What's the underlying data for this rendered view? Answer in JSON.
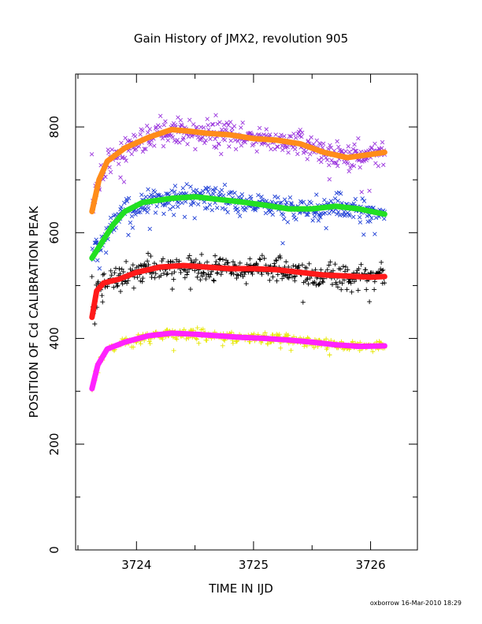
{
  "chart_data": {
    "type": "scatter",
    "title": "Gain History of JMX2, revolution 905",
    "xlabel": "TIME IN IJD",
    "ylabel": "POSITION OF Cd CALIBRATION PEAK",
    "footer": "oxborrow 16-Mar-2010 18:29",
    "xlim": [
      3723.48,
      3726.4
    ],
    "ylim": [
      0,
      900
    ],
    "x_ticks": [
      {
        "value": 3724,
        "label": "3724"
      },
      {
        "value": 3725,
        "label": "3725"
      },
      {
        "value": 3726,
        "label": "3726"
      }
    ],
    "y_ticks": [
      {
        "value": 0,
        "label": "0"
      },
      {
        "value": 200,
        "label": "200"
      },
      {
        "value": 400,
        "label": "400"
      },
      {
        "value": 600,
        "label": "600"
      },
      {
        "value": 800,
        "label": "800"
      }
    ],
    "x_range": [
      3723.62,
      3726.12
    ],
    "series": [
      {
        "scatter_color": "#9933dd",
        "scatter_marker": "x",
        "fit_color": "#ff8c1a",
        "scatter_spread": 28,
        "fit": [
          [
            3723.62,
            640
          ],
          [
            3723.68,
            700
          ],
          [
            3723.75,
            735
          ],
          [
            3723.9,
            760
          ],
          [
            3724.1,
            780
          ],
          [
            3724.3,
            795
          ],
          [
            3724.45,
            792
          ],
          [
            3724.6,
            788
          ],
          [
            3724.8,
            785
          ],
          [
            3725.0,
            778
          ],
          [
            3725.2,
            775
          ],
          [
            3725.4,
            768
          ],
          [
            3725.6,
            752
          ],
          [
            3725.8,
            742
          ],
          [
            3726.0,
            748
          ],
          [
            3726.12,
            752
          ]
        ]
      },
      {
        "scatter_color": "#1f3fd6",
        "scatter_marker": "x",
        "fit_color": "#22e022",
        "scatter_spread": 25,
        "fit": [
          [
            3723.62,
            552
          ],
          [
            3723.7,
            580
          ],
          [
            3723.8,
            615
          ],
          [
            3723.9,
            640
          ],
          [
            3724.05,
            657
          ],
          [
            3724.3,
            665
          ],
          [
            3724.5,
            668
          ],
          [
            3724.7,
            663
          ],
          [
            3724.9,
            658
          ],
          [
            3725.1,
            652
          ],
          [
            3725.3,
            645
          ],
          [
            3725.5,
            645
          ],
          [
            3725.7,
            650
          ],
          [
            3725.9,
            645
          ],
          [
            3726.12,
            635
          ]
        ]
      },
      {
        "scatter_color": "#000000",
        "scatter_marker": "+",
        "fit_color": "#ff1a1a",
        "scatter_spread": 25,
        "fit": [
          [
            3723.62,
            440
          ],
          [
            3723.66,
            490
          ],
          [
            3723.72,
            505
          ],
          [
            3723.85,
            512
          ],
          [
            3724.0,
            525
          ],
          [
            3724.2,
            535
          ],
          [
            3724.4,
            538
          ],
          [
            3724.6,
            535
          ],
          [
            3724.8,
            532
          ],
          [
            3725.0,
            532
          ],
          [
            3725.2,
            530
          ],
          [
            3725.4,
            525
          ],
          [
            3725.6,
            520
          ],
          [
            3725.8,
            518
          ],
          [
            3726.0,
            516
          ],
          [
            3726.12,
            517
          ]
        ]
      },
      {
        "scatter_color": "#e6e600",
        "scatter_marker": "+",
        "fit_color": "#ff22ff",
        "scatter_spread": 10,
        "fit": [
          [
            3723.62,
            305
          ],
          [
            3723.67,
            350
          ],
          [
            3723.75,
            380
          ],
          [
            3723.9,
            393
          ],
          [
            3724.1,
            405
          ],
          [
            3724.3,
            410
          ],
          [
            3724.5,
            408
          ],
          [
            3724.7,
            405
          ],
          [
            3724.9,
            402
          ],
          [
            3725.1,
            400
          ],
          [
            3725.3,
            397
          ],
          [
            3725.5,
            393
          ],
          [
            3725.7,
            388
          ],
          [
            3725.9,
            385
          ],
          [
            3726.12,
            386
          ]
        ]
      }
    ]
  }
}
